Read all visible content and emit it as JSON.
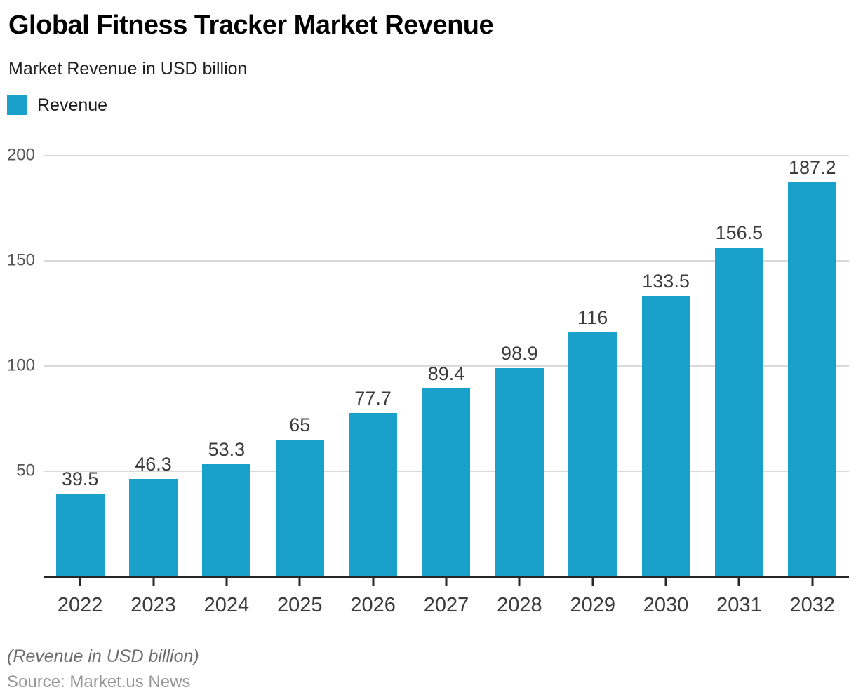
{
  "header": {
    "title": "Global Fitness Tracker Market Revenue",
    "subtitle": "Market Revenue in USD billion"
  },
  "legend": {
    "label": "Revenue",
    "swatch_color": "#1AA1CB"
  },
  "chart_data": {
    "type": "bar",
    "title": "Global Fitness Tracker Market Revenue",
    "subtitle": "Market Revenue in USD billion",
    "categories": [
      "2022",
      "2023",
      "2024",
      "2025",
      "2026",
      "2027",
      "2028",
      "2029",
      "2030",
      "2031",
      "2032"
    ],
    "series": [
      {
        "name": "Revenue",
        "values": [
          39.5,
          46.3,
          53.3,
          65,
          77.7,
          89.4,
          98.9,
          116,
          133.5,
          156.5,
          187.2
        ]
      }
    ],
    "xlabel": "",
    "ylabel": "",
    "ylim": [
      0,
      200
    ],
    "yticks": [
      50,
      100,
      150,
      200
    ],
    "grid": true,
    "legend_position": "top-left",
    "bar_color": "#1AA1CB",
    "gridline_color": "#d9d9d9",
    "axis_color": "#262626"
  },
  "footer": {
    "note": "(Revenue in USD billion)",
    "source": "Source: Market.us News"
  }
}
